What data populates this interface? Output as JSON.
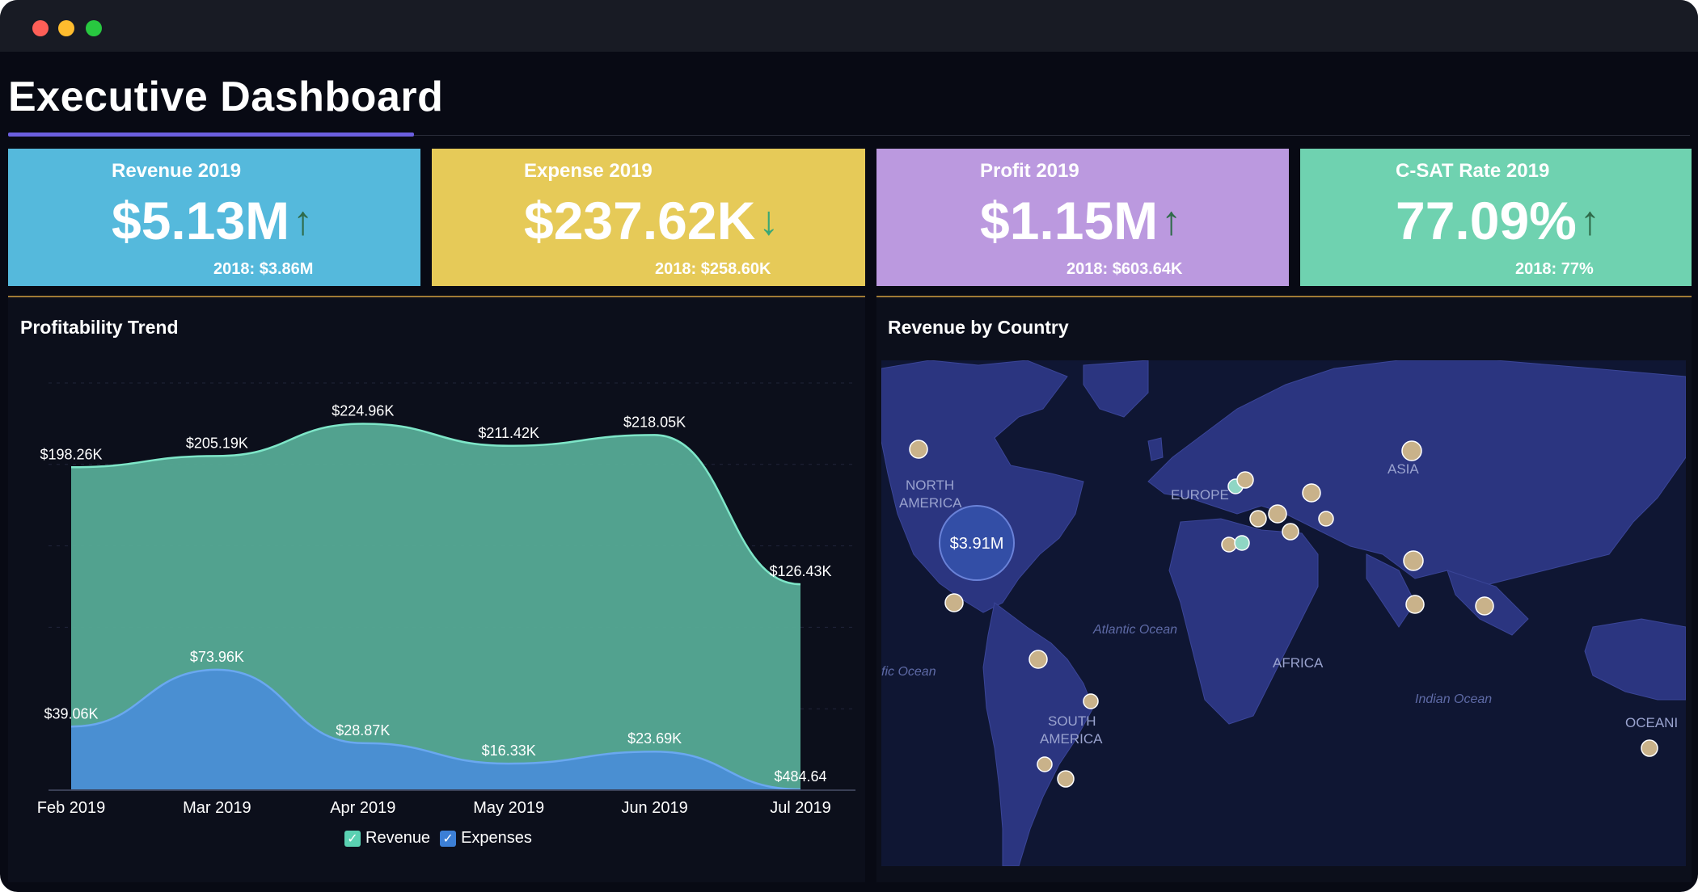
{
  "dashboard": {
    "title": "Executive Dashboard"
  },
  "kpis": [
    {
      "title": "Revenue 2019",
      "value": "$5.13M",
      "trend": "up",
      "arrow": "↑",
      "previous": "2018: $3.86M",
      "color": "#55b9dc",
      "arrow_color": "#2f6b4a"
    },
    {
      "title": "Expense 2019",
      "value": "$237.62K",
      "trend": "down",
      "arrow": "↓",
      "previous": "2018: $258.60K",
      "color": "#e6ca58",
      "arrow_color": "#3aa776"
    },
    {
      "title": "Profit 2019",
      "value": "$1.15M",
      "trend": "up",
      "arrow": "↑",
      "previous": "2018: $603.64K",
      "color": "#bb99df",
      "arrow_color": "#2f6b4a"
    },
    {
      "title": "C-SAT Rate 2019",
      "value": "77.09%",
      "trend": "up",
      "arrow": "↑",
      "previous": "2018: 77%",
      "color": "#6fd2b0",
      "arrow_color": "#2f6b4a"
    }
  ],
  "trend_panel": {
    "title": "Profitability Trend",
    "legend": [
      {
        "label": "Revenue",
        "color": "#5ad1b2"
      },
      {
        "label": "Expenses",
        "color": "#3c7fd6"
      }
    ]
  },
  "map_panel": {
    "title": "Revenue by Country",
    "continent_labels": [
      "NORTH",
      "AMERICA",
      "EUROPE",
      "ASIA",
      "AFRICA",
      "SOUTH",
      "AMERICA",
      "OCEANI"
    ],
    "ocean_labels": [
      "Atlantic Ocean",
      "fic Ocean",
      "Indian Ocean"
    ],
    "highlight_value": "$3.91M"
  },
  "chart_data": {
    "type": "area",
    "title": "Profitability Trend",
    "categories": [
      "Feb 2019",
      "Mar 2019",
      "Apr 2019",
      "May 2019",
      "Jun 2019",
      "Jul 2019"
    ],
    "series": [
      {
        "name": "Revenue",
        "values": [
          198260,
          205190,
          224960,
          211420,
          218050,
          126430
        ],
        "labels": [
          "$198.26K",
          "$205.19K",
          "$224.96K",
          "$211.42K",
          "$218.05K",
          "$126.43K"
        ],
        "color": "#56ab96"
      },
      {
        "name": "Expenses",
        "values": [
          39060,
          73960,
          28870,
          16330,
          23690,
          484.64
        ],
        "labels": [
          "$39.06K",
          "$73.96K",
          "$28.87K",
          "$16.33K",
          "$23.69K",
          "$484.64"
        ],
        "color": "#4a8ed6"
      }
    ],
    "ylim": [
      0,
      250000
    ],
    "grid": true,
    "legend_position": "bottom-center"
  }
}
